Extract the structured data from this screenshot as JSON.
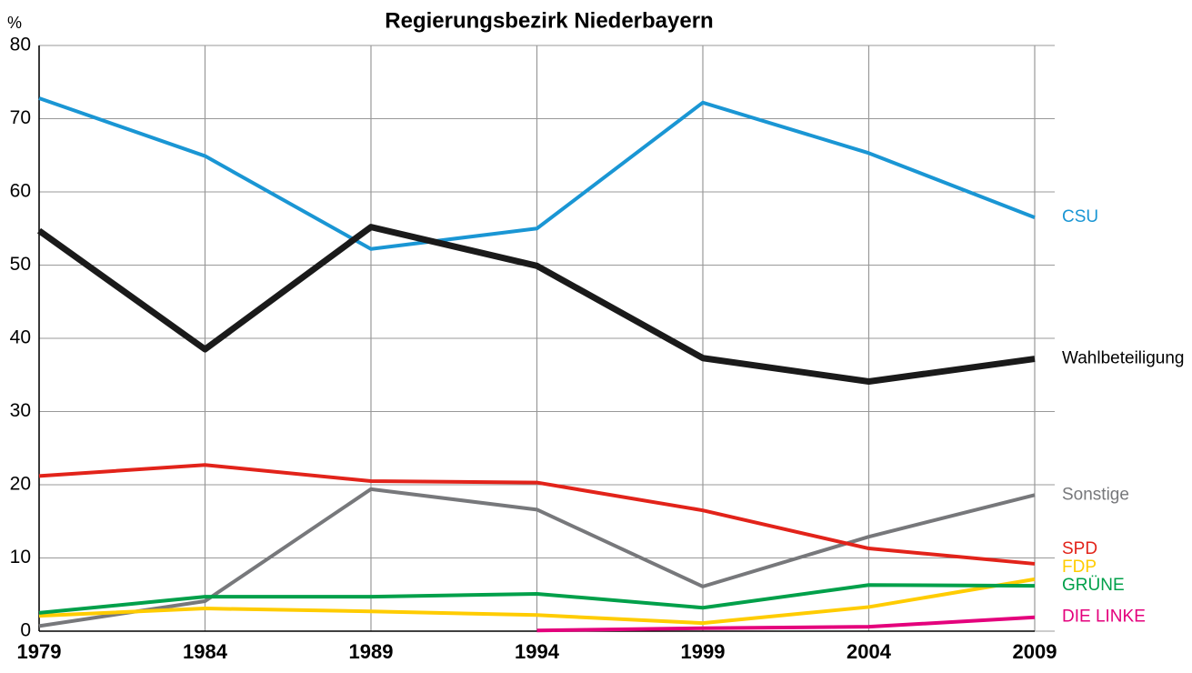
{
  "chart_data": {
    "type": "line",
    "title": "Regierungsbezirk Niederbayern",
    "y_label": "%",
    "x": [
      1979,
      1984,
      1989,
      1994,
      1999,
      2004,
      2009
    ],
    "xlim": [
      1979,
      2009
    ],
    "xticks": [
      1979,
      1984,
      1989,
      1994,
      1999,
      2004,
      2009
    ],
    "ylim": [
      0,
      80
    ],
    "yticks": [
      0,
      10,
      20,
      30,
      40,
      50,
      60,
      70,
      80
    ],
    "grid": true,
    "series": [
      {
        "name": "CSU",
        "color": "#1a96d4",
        "values": [
          72.8,
          64.9,
          52.2,
          55.0,
          72.2,
          65.3,
          56.5
        ]
      },
      {
        "name": "Wahlbeteiligung",
        "color": "#1a1a1a",
        "values": [
          54.7,
          38.5,
          55.2,
          49.9,
          37.3,
          34.1,
          37.2
        ]
      },
      {
        "name": "Sonstige",
        "color": "#77787b",
        "values": [
          0.7,
          4.1,
          19.4,
          16.6,
          6.1,
          12.9,
          18.6
        ]
      },
      {
        "name": "SPD",
        "color": "#e2231a",
        "values": [
          21.2,
          22.7,
          20.5,
          20.3,
          16.5,
          11.3,
          9.2
        ]
      },
      {
        "name": "FDP",
        "color": "#ffcc00",
        "values": [
          2.1,
          3.1,
          2.7,
          2.2,
          1.1,
          3.3,
          7.1
        ]
      },
      {
        "name": "GRÜNE",
        "color": "#00a04a",
        "values": [
          2.5,
          4.7,
          4.7,
          5.1,
          3.2,
          6.3,
          6.2
        ]
      },
      {
        "name": "DIE LINKE",
        "color": "#e4007c",
        "values": [
          null,
          null,
          null,
          0.1,
          0.4,
          0.6,
          1.9
        ]
      }
    ]
  }
}
